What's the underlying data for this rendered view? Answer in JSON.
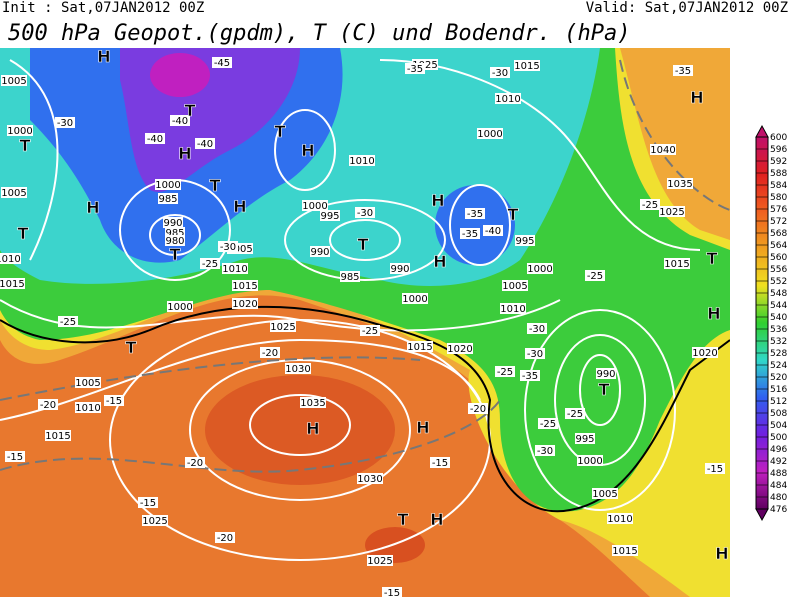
{
  "header": {
    "init": "Init : Sat,07JAN2012 00Z",
    "valid": "Valid: Sat,07JAN2012 00Z",
    "title": "500 hPa Geopot.(gpdm), T (C) und Bodendr. (hPa)"
  },
  "colorbar": {
    "ticks": [
      600,
      596,
      592,
      588,
      584,
      580,
      576,
      572,
      568,
      564,
      560,
      556,
      552,
      548,
      544,
      540,
      536,
      532,
      528,
      524,
      520,
      516,
      512,
      508,
      504,
      500,
      496,
      492,
      488,
      484,
      480,
      476
    ],
    "colors": [
      "#c0106a",
      "#e02020",
      "#f06020",
      "#f0a020",
      "#f0e020",
      "#30d030",
      "#30d8c8",
      "#3060f0",
      "#7020e0",
      "#c020c0",
      "#600060"
    ]
  },
  "pressure_labels": [
    "1005",
    "1000",
    "1005",
    "1010",
    "1015",
    "1000",
    "1005",
    "1010",
    "1015",
    "1025",
    "1030",
    "1035",
    "1030",
    "1025",
    "1020",
    "1015",
    "1000",
    "990",
    "985",
    "990",
    "995",
    "1000",
    "1010",
    "1025",
    "1015",
    "1010",
    "1000",
    "1005",
    "1010",
    "1000",
    "995",
    "990",
    "995",
    "1000",
    "1005",
    "1010",
    "1015",
    "1020",
    "1015",
    "1025",
    "1035",
    "1040",
    "1000",
    "985",
    "990",
    "985",
    "980",
    "1025",
    "1020",
    "1015",
    "1010",
    "1005"
  ],
  "temperature_labels": [
    "-45",
    "-40",
    "-40",
    "-40",
    "-35",
    "-30",
    "-30",
    "-30",
    "-35",
    "-40",
    "-35",
    "-30",
    "-25",
    "-25",
    "-25",
    "-20",
    "-20",
    "-15",
    "-15",
    "-20",
    "-15",
    "-20",
    "-15",
    "-15",
    "-20",
    "-25",
    "-30",
    "-30",
    "-35",
    "-25",
    "-30",
    "-25",
    "-25",
    "-25",
    "-35",
    "-15"
  ],
  "markers": [
    "H",
    "T",
    "T",
    "H",
    "T",
    "T",
    "H",
    "H",
    "H",
    "T",
    "T",
    "T",
    "H",
    "H",
    "T",
    "H",
    "H",
    "T",
    "H",
    "T",
    "H",
    "T",
    "H",
    "H",
    "T"
  ]
}
